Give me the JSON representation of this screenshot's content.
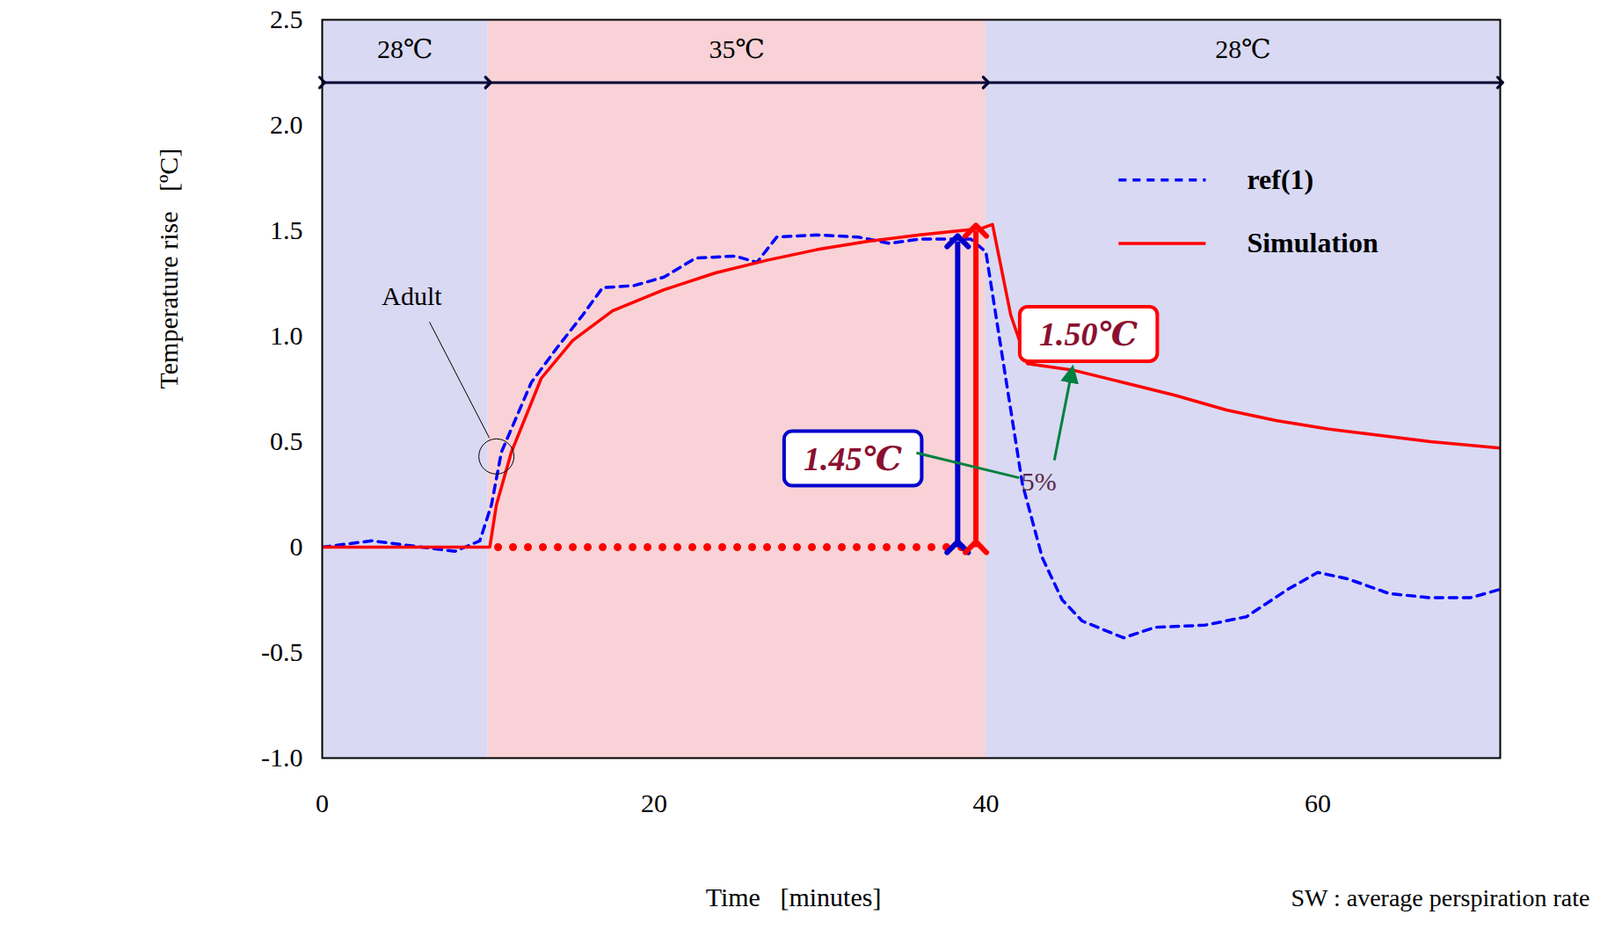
{
  "chart_data": {
    "type": "line",
    "x_label": "Time   [minutes]",
    "y_label": "Temperature rise   [ºC]",
    "note": "SW : average perspiration rate",
    "xlim": [
      0,
      71
    ],
    "xticks": [
      0,
      20,
      40,
      60
    ],
    "ylim": [
      -1,
      2.5
    ],
    "yticks": [
      {
        "value": -1,
        "label": "-1.0"
      },
      -0.5,
      0,
      0.5,
      {
        "value": 1,
        "label": "1.0"
      },
      1.5,
      {
        "value": 2,
        "label": "2.0"
      },
      2.5
    ],
    "grid": false,
    "legend": "top-right",
    "periods": [
      {
        "label": "28℃",
        "x0": 0,
        "x1": 10,
        "color": "#d9d9f3"
      },
      {
        "label": "35℃",
        "x0": 10,
        "x1": 40,
        "color": "#f8d2d6"
      },
      {
        "label": "28℃",
        "x0": 40,
        "x1": 71,
        "color": "#d9d9f3"
      }
    ],
    "series": [
      {
        "name": "ref(1)",
        "color": "#0000ff",
        "line_style": "dashed",
        "x": [
          0,
          3,
          6,
          8,
          9.5,
          10.2,
          10.8,
          12.6,
          14.2,
          15.7,
          16.9,
          18.8,
          20.6,
          22.5,
          24.9,
          26.2,
          27.4,
          29.8,
          32.3,
          34.2,
          36,
          39.1,
          40,
          41.2,
          42.2,
          43.4,
          44.6,
          45.8,
          48.3,
          50.2,
          53.2,
          55.7,
          58.2,
          60,
          61.8,
          64.3,
          66.8,
          69.2,
          71
        ],
        "values": [
          0,
          0.03,
          0,
          -0.02,
          0.03,
          0.2,
          0.45,
          0.78,
          0.95,
          1.1,
          1.23,
          1.24,
          1.28,
          1.37,
          1.38,
          1.35,
          1.47,
          1.48,
          1.47,
          1.44,
          1.46,
          1.46,
          1.4,
          0.8,
          0.3,
          -0.05,
          -0.25,
          -0.35,
          -0.43,
          -0.38,
          -0.37,
          -0.33,
          -0.2,
          -0.12,
          -0.15,
          -0.22,
          -0.24,
          -0.24,
          -0.2
        ]
      },
      {
        "name": "Simulation",
        "color": "#ff0000",
        "line_style": "solid",
        "x": [
          0,
          10.1,
          10.5,
          11.4,
          13.2,
          15.1,
          17.5,
          20.6,
          23.7,
          26.8,
          29.8,
          32.9,
          36,
          39.7,
          40.4,
          41.5,
          42.5,
          45.2,
          48.3,
          51.4,
          54.5,
          57.5,
          60.6,
          63.7,
          66.8,
          71
        ],
        "values": [
          0,
          0,
          0.2,
          0.45,
          0.8,
          0.98,
          1.12,
          1.22,
          1.3,
          1.36,
          1.41,
          1.45,
          1.48,
          1.51,
          1.53,
          1.1,
          0.87,
          0.84,
          0.78,
          0.72,
          0.65,
          0.6,
          0.56,
          0.53,
          0.5,
          0.47
        ]
      }
    ],
    "measurements": [
      {
        "label": "1.45℃",
        "value": 1.45,
        "x": 38.3,
        "color": "#0000cc",
        "label_x": 32,
        "label_y": 0.42
      },
      {
        "label": "1.50℃",
        "value": 1.5,
        "x": 39.4,
        "color": "#ff0000",
        "label_x": 46.2,
        "label_y": 1.01
      }
    ],
    "baseline": {
      "y": 0,
      "x0": 10.6,
      "x1": 39.4,
      "color": "#ff0000",
      "line_style": "dotted"
    },
    "annotations": [
      {
        "text": "5%",
        "x": 43.2,
        "y": 0.31
      },
      {
        "text": "Adult",
        "x": 5.4,
        "y": 1.19,
        "target_x": 10.5,
        "target_y": 0.43
      }
    ]
  }
}
